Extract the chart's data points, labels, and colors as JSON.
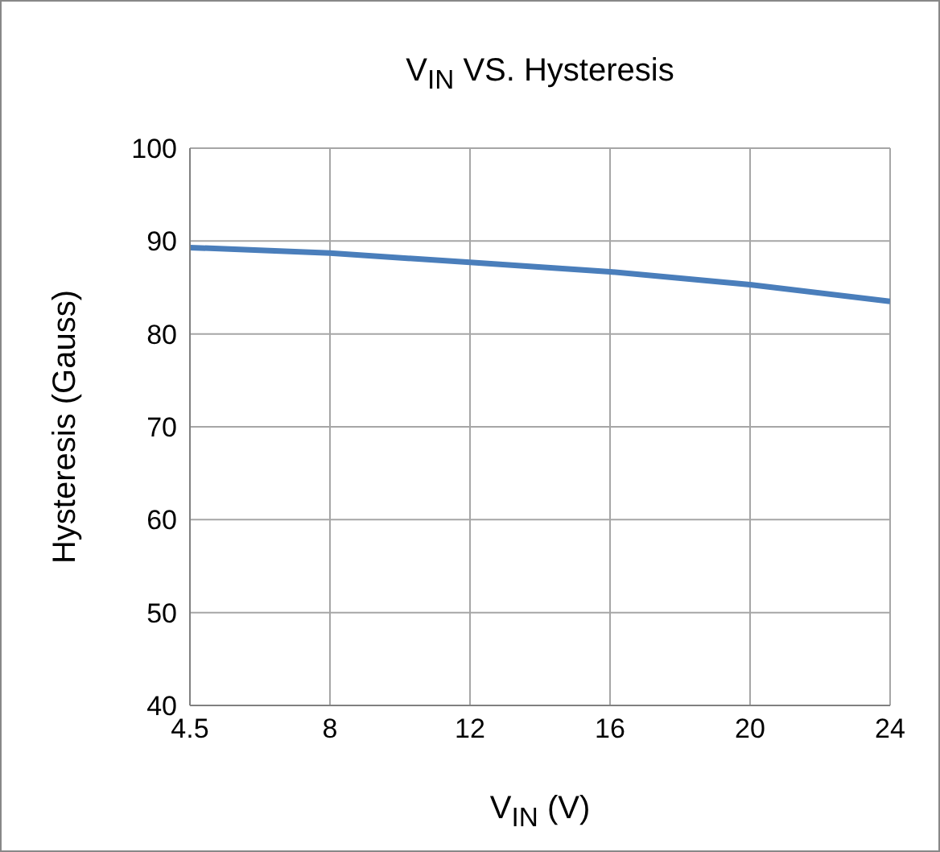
{
  "chart_data": {
    "type": "line",
    "title": "V$_{IN}$ VS. Hysteresis",
    "xlabel": "V$_{IN}$  (V)",
    "ylabel": "Hysteresis  (Gauss)",
    "categories": [
      "4.5",
      "8",
      "12",
      "16",
      "20",
      "24"
    ],
    "series": [
      {
        "color": "#4a7ebb",
        "values": [
          89.3,
          88.7,
          87.7,
          86.7,
          85.3,
          83.5
        ]
      }
    ],
    "ylim": [
      40,
      100
    ],
    "yticks": [
      40,
      50,
      60,
      70,
      80,
      90,
      100
    ],
    "grid": true,
    "legend": false,
    "marker": "none",
    "line_style": "solid"
  }
}
